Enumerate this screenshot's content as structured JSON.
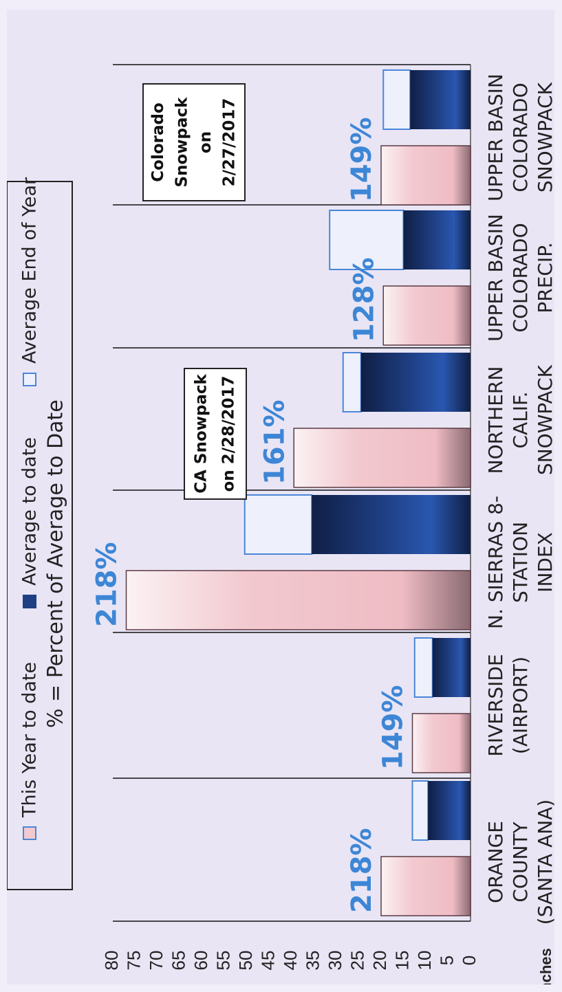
{
  "chart_data": {
    "type": "bar",
    "orientation": "rotated-90",
    "title": "% = Percent of Average to Date",
    "ylabel": "Inches",
    "ylim": [
      0,
      80
    ],
    "yticks": [
      0,
      5,
      10,
      15,
      20,
      25,
      30,
      35,
      40,
      45,
      50,
      55,
      60,
      65,
      70,
      75,
      80
    ],
    "legend": [
      "This Year to date",
      "Average to date",
      "Average End of Year"
    ],
    "colors": {
      "this_year": "#f2c9cf",
      "avg_to_date": "#1f3f84",
      "avg_end": "#eef1fb",
      "avg_end_border": "#4a86d8",
      "percent_label": "#3d86d6"
    },
    "categories": [
      {
        "label": [
          "ORANGE",
          "COUNTY",
          "(SANTA ANA)"
        ],
        "this_year": 20,
        "avg_to_date": 9.5,
        "avg_end": 13,
        "percent": "218%"
      },
      {
        "label": [
          "RIVERSIDE",
          "(AIRPORT)"
        ],
        "this_year": 13,
        "avg_to_date": 8.5,
        "avg_end": 12.5,
        "percent": "149%"
      },
      {
        "label": [
          "N. SIERRAS 8-",
          "STATION",
          "INDEX"
        ],
        "this_year": 77,
        "avg_to_date": 35.5,
        "avg_end": 50.5,
        "percent": "218%"
      },
      {
        "label": [
          "NORTHERN",
          "CALIF.",
          "SNOWPACK"
        ],
        "this_year": 39.5,
        "avg_to_date": 24.5,
        "avg_end": 28.5,
        "percent": "161%"
      },
      {
        "label": [
          "UPPER BASIN",
          "COLORADO",
          "PRECIP."
        ],
        "this_year": 19.5,
        "avg_to_date": 15,
        "avg_end": 31.5,
        "percent": "128%"
      },
      {
        "label": [
          "UPPER BASIN",
          "COLORADO",
          "SNOWPACK"
        ],
        "this_year": 20,
        "avg_to_date": 13.5,
        "avg_end": 19.5,
        "percent": "149%"
      }
    ],
    "annotations": [
      {
        "lines": [
          "CA Snowpack",
          "on 2/28/2017"
        ]
      },
      {
        "lines": [
          "Colorado",
          "Snowpack",
          "on",
          "2/27/2017"
        ]
      }
    ]
  }
}
